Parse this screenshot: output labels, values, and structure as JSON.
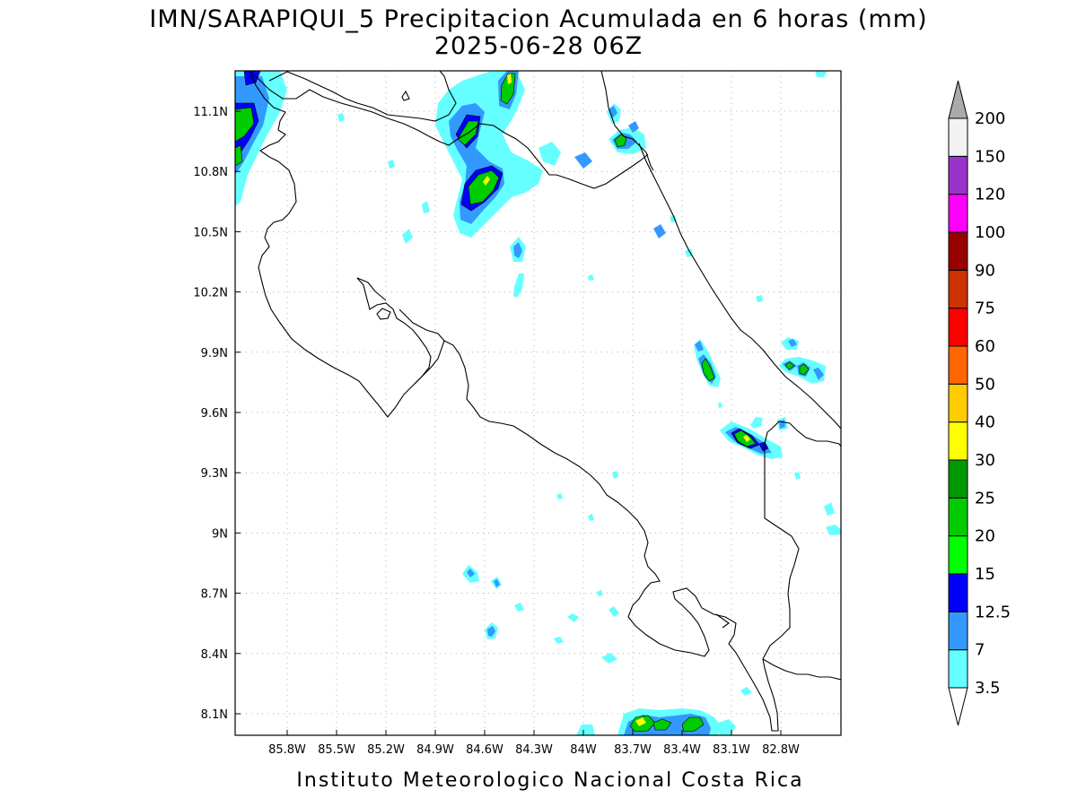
{
  "title": {
    "line1": "IMN/SARAPIQUI_5 Precipitacion Acumulada en 6 horas (mm)",
    "line2": "2025-06-28 06Z"
  },
  "footer": "Instituto Meteorologico Nacional Costa Rica",
  "axes": {
    "lon_ticks": [
      "85.8W",
      "85.5W",
      "85.2W",
      "84.9W",
      "84.6W",
      "84.3W",
      "84W",
      "83.7W",
      "83.4W",
      "83.1W",
      "82.8W"
    ],
    "lat_ticks": [
      "11.1N",
      "10.8N",
      "10.5N",
      "10.2N",
      "9.9N",
      "9.6N",
      "9.3N",
      "9N",
      "8.7N",
      "8.4N",
      "8.1N"
    ]
  },
  "colorbar": {
    "levels": [
      "3.5",
      "7",
      "12.5",
      "15",
      "20",
      "25",
      "30",
      "40",
      "50",
      "60",
      "75",
      "90",
      "100",
      "120",
      "150",
      "200"
    ],
    "colors": [
      "#ffffff",
      "#66ffff",
      "#3399ff",
      "#0000ff",
      "#00ff00",
      "#00cc00",
      "#009900",
      "#ffff00",
      "#ffcc00",
      "#ff6600",
      "#ff0000",
      "#cc3300",
      "#990000",
      "#ff00ff",
      "#9933cc",
      "#f2f2f2",
      "#aaaaaa"
    ]
  },
  "precip_colors": {
    "lightcyan": "#66ffff",
    "lightblue": "#3399ff",
    "blue": "#0000ff",
    "green": "#00ff00",
    "midgreen": "#00cc00",
    "darkgreen": "#009900",
    "yellow": "#ffff00"
  }
}
